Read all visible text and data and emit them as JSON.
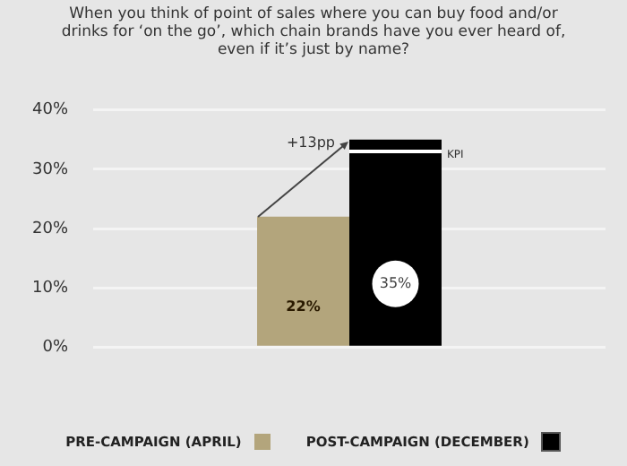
{
  "chart_data": {
    "type": "bar",
    "title": "When you think of point of sales where you can buy food and/or drinks for ‘on the go’, which chain brands have you ever heard of, even if it’s just by name?",
    "categories": [
      null
    ],
    "series": [
      {
        "name": "PRE-CAMPAIGN (APRIL)",
        "color": "#b3a57c",
        "values": [
          22
        ],
        "value_labels": [
          "22%"
        ]
      },
      {
        "name": "POST-CAMPAIGN (DECEMBER)",
        "color": "#000000",
        "values": [
          35
        ],
        "value_labels": [
          "35%"
        ]
      }
    ],
    "ylim": [
      0,
      40
    ],
    "yticks": [
      {
        "value": 0,
        "label": "0%"
      },
      {
        "value": 10,
        "label": "10%"
      },
      {
        "value": 20,
        "label": "20%"
      },
      {
        "value": 30,
        "label": "30%"
      },
      {
        "value": 40,
        "label": "40%"
      }
    ],
    "grid": "y",
    "legend": "bottom",
    "ref_lines": [
      {
        "axis": "y",
        "value": 33,
        "label": "KPI",
        "color": "#ffffff"
      }
    ],
    "annotations": [
      "+13pp"
    ]
  }
}
